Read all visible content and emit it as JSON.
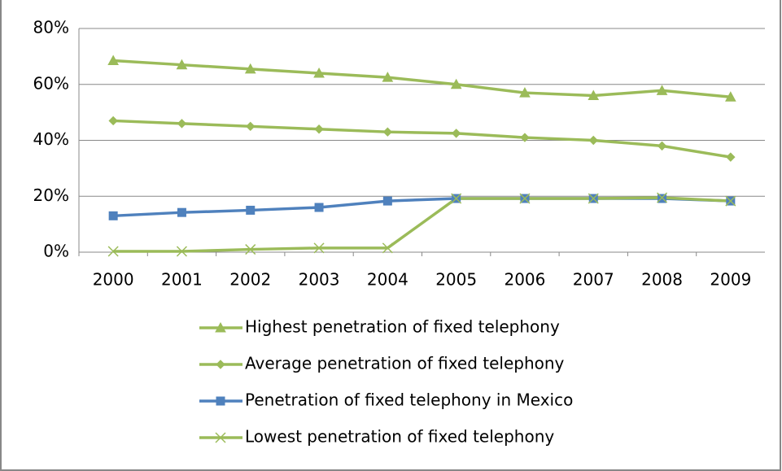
{
  "chart_data": {
    "type": "line",
    "categories": [
      "2000",
      "2001",
      "2002",
      "2003",
      "2004",
      "2005",
      "2006",
      "2007",
      "2008",
      "2009"
    ],
    "series": [
      {
        "name": "Highest penetration of fixed telephony",
        "color": "#9bbb59",
        "marker": "triangle",
        "values": [
          68.5,
          67,
          65.5,
          64,
          62.5,
          60,
          57,
          56,
          57.8,
          55.5
        ]
      },
      {
        "name": "Average penetration of fixed telephony",
        "color": "#9bbb59",
        "marker": "diamond",
        "values": [
          47,
          46,
          45,
          44,
          43,
          42.5,
          41,
          40,
          38,
          34
        ]
      },
      {
        "name": "Penetration of fixed telephony in Mexico",
        "color": "#4f81bd",
        "marker": "square",
        "values": [
          13,
          14.2,
          15,
          16,
          18.3,
          19.2,
          19.2,
          19.2,
          19.2,
          18.3
        ]
      },
      {
        "name": "Lowest penetration of fixed telephony",
        "color": "#9bbb59",
        "marker": "x",
        "values": [
          0.3,
          0.3,
          1,
          1.5,
          1.5,
          19.2,
          19.2,
          19.2,
          19.5,
          18.3
        ]
      }
    ],
    "ylim": [
      0,
      80
    ],
    "yticks": [
      {
        "value": 0,
        "label": "0%"
      },
      {
        "value": 20,
        "label": "20%"
      },
      {
        "value": 40,
        "label": "40%"
      },
      {
        "value": 60,
        "label": "60%"
      },
      {
        "value": 80,
        "label": "80%"
      }
    ],
    "grid": true,
    "legend": "bottom"
  }
}
